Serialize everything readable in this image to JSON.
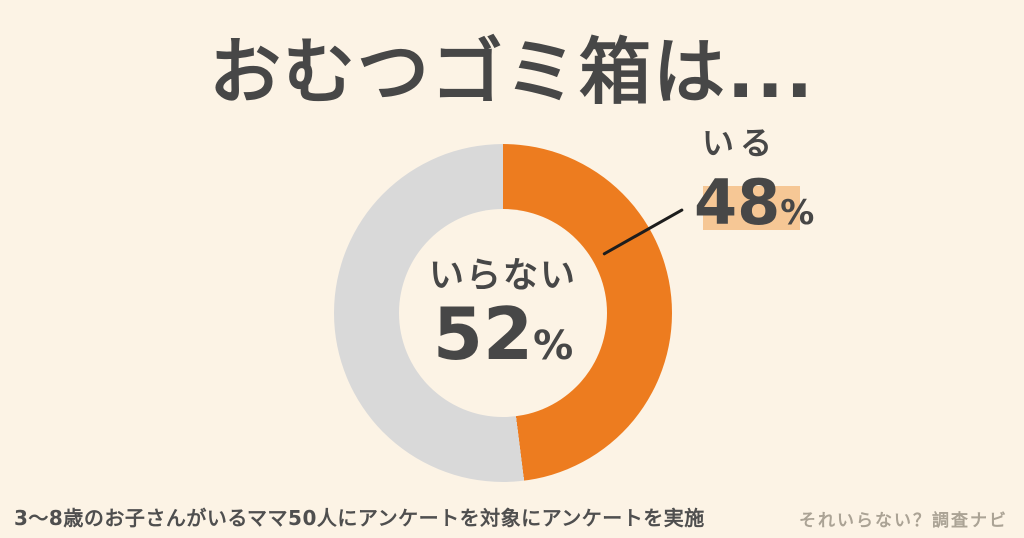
{
  "page": {
    "title": "おむつゴミ箱は...",
    "footer_note": "3〜8歳のお子さんがいるママ50人にアンケートを対象にアンケートを実施",
    "site_credit": "それいらない？調査ナビ"
  },
  "colors": {
    "page_background": "#FCF3E5",
    "accent_orange": "#ED7C1F",
    "segment_gray": "#D9D9D9",
    "text_dark": "#474747",
    "footer_dark": "#4F4F4F",
    "highlight_peach": "#F6C795",
    "credit_gray": "#ABA395",
    "line_black": "#1D1D1D"
  },
  "chart_data": {
    "type": "pie",
    "subtype": "donut",
    "title": "おむつゴミ箱は...",
    "labels": [
      "いる",
      "いらない"
    ],
    "values": [
      48,
      52
    ],
    "unit": "%",
    "colors": [
      "#ED7C1F",
      "#D9D9D9"
    ],
    "start_angle_deg": 0,
    "direction": "clockwise",
    "inner_radius_ratio": 0.615,
    "legend_position": "none",
    "callout": {
      "label": "いる",
      "value_text": "48",
      "percent_sign": "%"
    },
    "center": {
      "label": "いらない",
      "value_text": "52",
      "percent_sign": "%"
    }
  }
}
